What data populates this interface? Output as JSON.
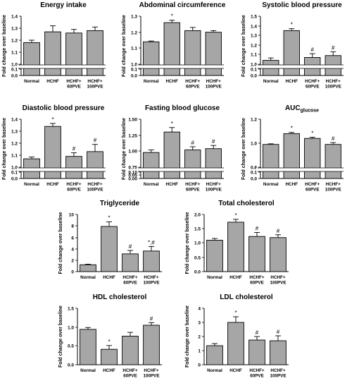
{
  "ylabel": "Fold change over baseline",
  "category_lines": [
    [
      "Normal"
    ],
    [
      "HCHF"
    ],
    [
      "HCHF+",
      "60PVE"
    ],
    [
      "HCHF+",
      "100PVE"
    ]
  ],
  "chart_data": [
    {
      "type": "bar",
      "title": "Energy intake",
      "title_sub": "",
      "categories": [
        "Normal",
        "HCHF",
        "HCHF+60PVE",
        "HCHF+100PVE"
      ],
      "values": [
        1.18,
        1.27,
        1.26,
        1.28
      ],
      "errors": [
        0.02,
        0.05,
        0.03,
        0.03
      ],
      "annotations": [
        "",
        "",
        "",
        ""
      ],
      "ylim": [
        0.0,
        1.4
      ],
      "yticks": [
        "1.4",
        "1.3",
        "1.2",
        "1.1",
        "1.0",
        "0.1",
        "0.0"
      ],
      "axis_break": true
    },
    {
      "type": "bar",
      "title": "Abdominal circumference",
      "title_sub": "",
      "categories": [
        "Normal",
        "HCHF",
        "HCHF+60PVE",
        "HCHF+100PVE"
      ],
      "values": [
        1.14,
        1.26,
        1.21,
        1.2
      ],
      "errors": [
        0.005,
        0.015,
        0.02,
        0.01
      ],
      "annotations": [
        "",
        "*",
        "",
        ""
      ],
      "ylim": [
        0.0,
        1.3
      ],
      "yticks": [
        "1.3",
        "1.2",
        "1.1",
        "1.0",
        "0.1",
        "0.0"
      ],
      "axis_break": true
    },
    {
      "type": "bar",
      "title": "Systolic blood pressure",
      "title_sub": "",
      "categories": [
        "Normal",
        "HCHF",
        "HCHF+60PVE",
        "HCHF+100PVE"
      ],
      "values": [
        1.04,
        1.35,
        1.07,
        1.09
      ],
      "errors": [
        0.025,
        0.02,
        0.04,
        0.04
      ],
      "annotations": [
        "",
        "*",
        "#",
        "#"
      ],
      "ylim": [
        0.0,
        1.5
      ],
      "yticks": [
        "1.5",
        "1.4",
        "1.3",
        "1.2",
        "1.1",
        "1.0",
        "0.1",
        "0.0"
      ],
      "axis_break": true
    },
    {
      "type": "bar",
      "title": "Diastolic blood pressure",
      "title_sub": "",
      "categories": [
        "Normal",
        "HCHF",
        "HCHF+60PVE",
        "HCHF+100PVE"
      ],
      "values": [
        1.07,
        1.34,
        1.09,
        1.13
      ],
      "errors": [
        0.015,
        0.025,
        0.03,
        0.06
      ],
      "annotations": [
        "",
        "*",
        "#",
        "#"
      ],
      "ylim": [
        0.0,
        1.4
      ],
      "yticks": [
        "1.4",
        "1.3",
        "1.2",
        "1.1",
        "1.0",
        "0.1",
        "0.0"
      ],
      "axis_break": true
    },
    {
      "type": "bar",
      "title": "Fasting blood glucose",
      "title_sub": "",
      "categories": [
        "Normal",
        "HCHF",
        "HCHF+60PVE",
        "HCHF+100PVE"
      ],
      "values": [
        0.98,
        1.3,
        1.02,
        1.04
      ],
      "errors": [
        0.04,
        0.07,
        0.05,
        0.05
      ],
      "annotations": [
        "",
        "*",
        "#",
        "#"
      ],
      "ylim": [
        0.0,
        1.5
      ],
      "yticks": [
        "1.50",
        "1.25",
        "1.00",
        "0.75",
        "0.10",
        "0.05",
        "0.00"
      ],
      "axis_break": true
    },
    {
      "type": "bar",
      "title": "AUC",
      "title_sub": "glucose",
      "categories": [
        "Normal",
        "HCHF",
        "HCHF+60PVE",
        "HCHF+100PVE"
      ],
      "values": [
        0.99,
        1.08,
        1.04,
        0.99
      ],
      "errors": [
        0.005,
        0.01,
        0.01,
        0.015
      ],
      "annotations": [
        "",
        "*",
        "*",
        "#"
      ],
      "ylim": [
        0.0,
        1.2
      ],
      "yticks": [
        "1.2",
        "1.0",
        "0.8",
        "0.1",
        "0.0"
      ],
      "axis_break": true
    },
    {
      "type": "bar",
      "title": "Triglyceride",
      "title_sub": "",
      "categories": [
        "Normal",
        "HCHF",
        "HCHF+60PVE",
        "HCHF+100PVE"
      ],
      "values": [
        1.2,
        7.9,
        3.1,
        3.6
      ],
      "errors": [
        0.1,
        0.8,
        0.6,
        0.8
      ],
      "annotations": [
        "",
        "*",
        "#",
        "*,#"
      ],
      "ylim": [
        0,
        10
      ],
      "yticks": [
        "10",
        "8",
        "6",
        "4",
        "2",
        "0"
      ],
      "axis_break": false
    },
    {
      "type": "bar",
      "title": "Total cholesterol",
      "title_sub": "",
      "categories": [
        "Normal",
        "HCHF",
        "HCHF+60PVE",
        "HCHF+100PVE"
      ],
      "values": [
        1.1,
        1.73,
        1.23,
        1.19
      ],
      "errors": [
        0.06,
        0.1,
        0.14,
        0.1
      ],
      "annotations": [
        "",
        "*",
        "#",
        "#"
      ],
      "ylim": [
        0.0,
        2.0
      ],
      "yticks": [
        "2.0",
        "1.5",
        "1.0",
        "0.5",
        "0.0"
      ],
      "axis_break": false
    },
    {
      "type": "bar",
      "title": "HDL cholesterol",
      "title_sub": "",
      "categories": [
        "Normal",
        "HCHF",
        "HCHF+60PVE",
        "HCHF+100PVE"
      ],
      "values": [
        0.94,
        0.41,
        0.76,
        1.05
      ],
      "errors": [
        0.05,
        0.1,
        0.1,
        0.07
      ],
      "annotations": [
        "",
        "*",
        "",
        "#"
      ],
      "ylim": [
        0.0,
        1.5
      ],
      "yticks": [
        "1.5",
        "1.0",
        "0.5",
        "0.0"
      ],
      "axis_break": false
    },
    {
      "type": "bar",
      "title": "LDL cholesterol",
      "title_sub": "",
      "categories": [
        "Normal",
        "HCHF",
        "HCHF+60PVE",
        "HCHF+100PVE"
      ],
      "values": [
        1.35,
        3.0,
        1.75,
        1.7
      ],
      "errors": [
        0.15,
        0.4,
        0.25,
        0.35
      ],
      "annotations": [
        "",
        "*",
        "#",
        "#"
      ],
      "ylim": [
        0,
        4
      ],
      "yticks": [
        "4",
        "3",
        "2",
        "1",
        "0"
      ],
      "axis_break": false
    }
  ]
}
